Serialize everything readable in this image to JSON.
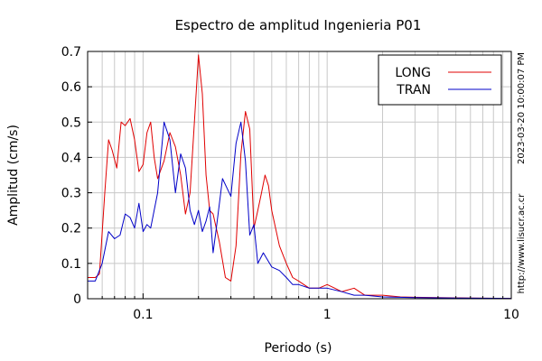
{
  "chart_data": {
    "type": "line",
    "title": "Espectro de amplitud Ingenieria P01",
    "xlabel": "Periodo (s)",
    "ylabel": "Amplitud (cm/s)",
    "xscale": "log",
    "xlim": [
      0.05,
      10
    ],
    "ylim": [
      0,
      0.7
    ],
    "x_ticks": [
      {
        "value": 0.1,
        "label": "0.1"
      },
      {
        "value": 1,
        "label": "1"
      },
      {
        "value": 10,
        "label": "10"
      }
    ],
    "y_ticks": [
      0,
      0.1,
      0.2,
      0.3,
      0.4,
      0.5,
      0.6,
      0.7
    ],
    "y_tick_labels": [
      "0",
      "0.1",
      "0.2",
      "0.3",
      "0.4",
      "0.5",
      "0.6",
      "0.7"
    ],
    "grid": true,
    "legend_position": "top-right",
    "side_labels": {
      "timestamp": "2023-03-20 10:00:07 PM",
      "url": "http://www.lisucr.ac.cr"
    },
    "series": [
      {
        "name": "LONG",
        "color": "#e00000",
        "x": [
          0.05,
          0.055,
          0.058,
          0.062,
          0.065,
          0.068,
          0.072,
          0.076,
          0.08,
          0.085,
          0.09,
          0.095,
          0.1,
          0.105,
          0.11,
          0.115,
          0.12,
          0.13,
          0.14,
          0.15,
          0.16,
          0.17,
          0.18,
          0.19,
          0.2,
          0.21,
          0.22,
          0.23,
          0.24,
          0.26,
          0.28,
          0.3,
          0.32,
          0.34,
          0.36,
          0.38,
          0.4,
          0.42,
          0.44,
          0.46,
          0.48,
          0.5,
          0.55,
          0.6,
          0.65,
          0.7,
          0.8,
          0.9,
          1.0,
          1.1,
          1.2,
          1.4,
          1.6,
          2.0,
          2.5,
          3.0,
          4.0,
          6.0,
          10.0
        ],
        "y": [
          0.06,
          0.06,
          0.07,
          0.3,
          0.45,
          0.42,
          0.37,
          0.5,
          0.49,
          0.51,
          0.45,
          0.36,
          0.38,
          0.47,
          0.5,
          0.4,
          0.34,
          0.39,
          0.47,
          0.43,
          0.35,
          0.24,
          0.3,
          0.5,
          0.69,
          0.58,
          0.35,
          0.25,
          0.24,
          0.16,
          0.06,
          0.05,
          0.15,
          0.41,
          0.53,
          0.48,
          0.2,
          0.25,
          0.3,
          0.35,
          0.32,
          0.25,
          0.15,
          0.1,
          0.06,
          0.05,
          0.03,
          0.03,
          0.04,
          0.03,
          0.02,
          0.03,
          0.01,
          0.01,
          0.005,
          0.004,
          0.003,
          0.002,
          0.001
        ]
      },
      {
        "name": "TRAN",
        "color": "#0000c8",
        "x": [
          0.05,
          0.055,
          0.06,
          0.065,
          0.07,
          0.075,
          0.08,
          0.085,
          0.09,
          0.095,
          0.1,
          0.105,
          0.11,
          0.12,
          0.13,
          0.14,
          0.15,
          0.16,
          0.17,
          0.18,
          0.19,
          0.2,
          0.21,
          0.22,
          0.23,
          0.24,
          0.25,
          0.27,
          0.3,
          0.32,
          0.34,
          0.36,
          0.38,
          0.4,
          0.42,
          0.45,
          0.5,
          0.55,
          0.6,
          0.65,
          0.7,
          0.8,
          0.9,
          1.0,
          1.2,
          1.4,
          1.6,
          2.0,
          3.0,
          5.0,
          10.0
        ],
        "y": [
          0.05,
          0.05,
          0.1,
          0.19,
          0.17,
          0.18,
          0.24,
          0.23,
          0.2,
          0.27,
          0.19,
          0.21,
          0.2,
          0.3,
          0.5,
          0.45,
          0.3,
          0.41,
          0.37,
          0.25,
          0.21,
          0.25,
          0.19,
          0.22,
          0.26,
          0.13,
          0.2,
          0.34,
          0.29,
          0.44,
          0.5,
          0.39,
          0.18,
          0.21,
          0.1,
          0.13,
          0.09,
          0.08,
          0.06,
          0.04,
          0.04,
          0.03,
          0.03,
          0.03,
          0.02,
          0.01,
          0.01,
          0.005,
          0.003,
          0.002,
          0.001
        ]
      }
    ]
  }
}
